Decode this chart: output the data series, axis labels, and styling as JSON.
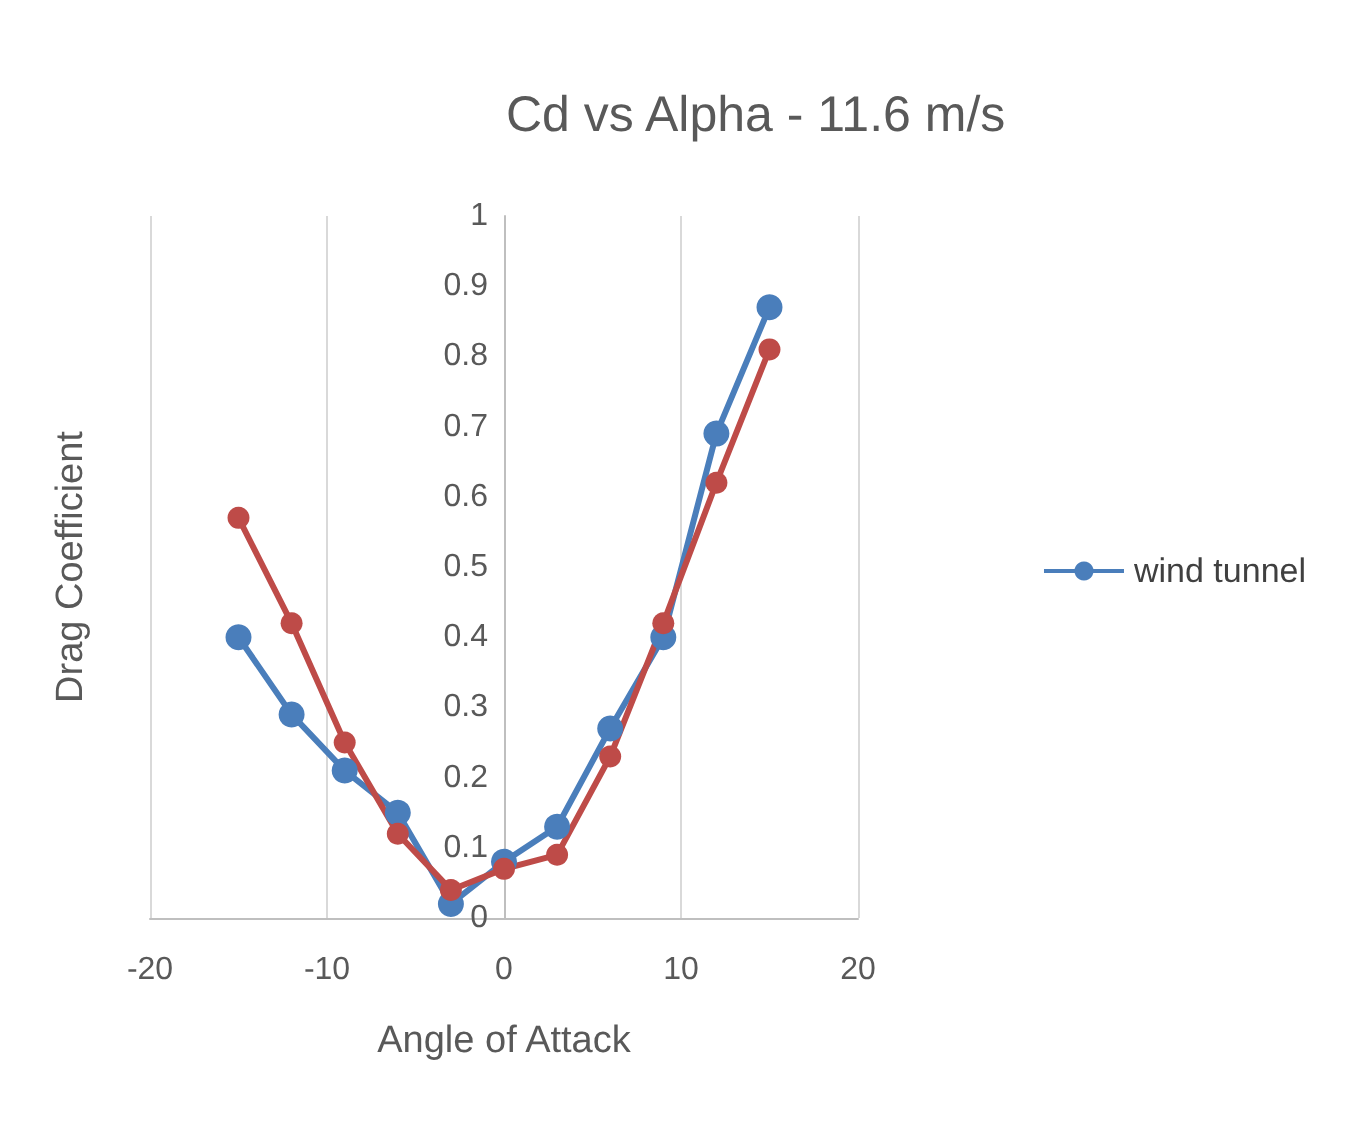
{
  "chart_data": {
    "type": "line",
    "title": "Cd vs Alpha - 11.6 m/s",
    "xlabel": "Angle of Attack",
    "ylabel": "Drag Coefficient",
    "x": [
      -15,
      -12,
      -9,
      -6,
      -3,
      0,
      3,
      6,
      9,
      12,
      15
    ],
    "series": [
      {
        "name": "wind tunnel",
        "color": "#4a7ebb",
        "values": [
          0.4,
          0.29,
          0.21,
          0.15,
          0.02,
          0.08,
          0.13,
          0.27,
          0.4,
          0.69,
          0.87
        ]
      },
      {
        "color": "#be4b48",
        "values": [
          0.57,
          0.42,
          0.25,
          0.12,
          0.04,
          0.07,
          0.09,
          0.23,
          0.42,
          0.62,
          0.81
        ]
      }
    ],
    "xlim": [
      -20,
      20
    ],
    "xticks": [
      -20,
      -10,
      0,
      10,
      20
    ],
    "ylim": [
      0,
      1
    ],
    "yticks": [
      0,
      0.1,
      0.2,
      0.3,
      0.4,
      0.5,
      0.6,
      0.7,
      0.8,
      0.9,
      1
    ],
    "grid": "x",
    "legend": "right",
    "marker": "circle",
    "line_style": "solid"
  }
}
